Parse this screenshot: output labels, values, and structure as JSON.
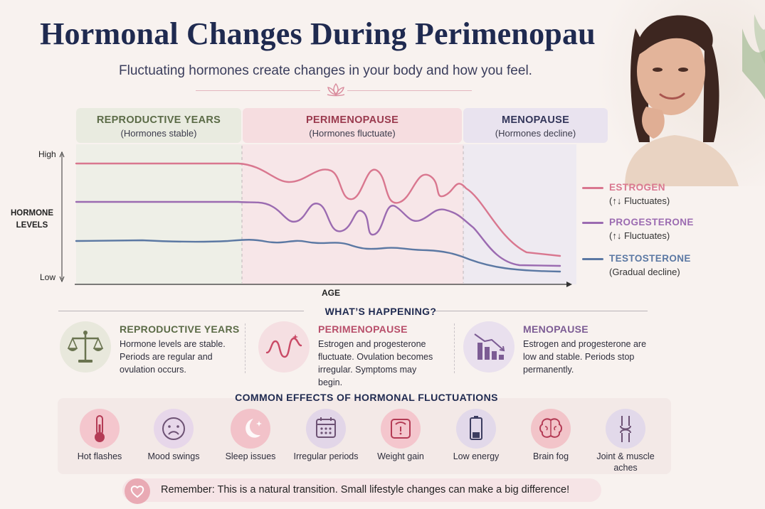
{
  "header": {
    "title": "Hormonal Changes During Perimenopause",
    "subtitle": "Fluctuating hormones create changes in your body and how you feel."
  },
  "phases": [
    {
      "title": "REPRODUCTIVE YEARS",
      "sub": "(Hormones stable)",
      "bg": "#e9ebe0",
      "color": "#5b6b47"
    },
    {
      "title": "PERIMENOPAUSE",
      "sub": "(Hormones fluctuate)",
      "bg": "#f6dde0",
      "color": "#9a3a4e"
    },
    {
      "title": "MENOPAUSE",
      "sub": "(Hormones decline)",
      "bg": "#e9e3ef",
      "color": "#33365a"
    }
  ],
  "axes": {
    "y_high": "High",
    "y_low": "Low",
    "y_title_line1": "HORMONE",
    "y_title_line2": "LEVELS",
    "x_title": "AGE"
  },
  "legend": [
    {
      "name": "ESTROGEN",
      "note": "(↑↓ Fluctuates)",
      "color": "#d9778f"
    },
    {
      "name": "PROGESTERONE",
      "note": "(↑↓ Fluctuates)",
      "color": "#9b6bb1"
    },
    {
      "name": "TESTOSTERONE",
      "note": "(Gradual decline)",
      "color": "#5b78a3"
    }
  ],
  "happening": {
    "title": "WHAT’S HAPPENING?",
    "stages": [
      {
        "title": "REPRODUCTIVE YEARS",
        "text": "Hormone levels are stable. Periods are regular and ovulation occurs.",
        "color": "#5b6b47",
        "icon": "scales-icon"
      },
      {
        "title": "PERIMENOPAUSE",
        "text": "Estrogen and progesterone fluctuate. Ovulation becomes irregular. Symptoms may begin.",
        "color": "#b84e6a",
        "icon": "wave-icon"
      },
      {
        "title": "MENOPAUSE",
        "text": "Estrogen and progesterone are low and stable. Periods stop permanently.",
        "color": "#7c5c94",
        "icon": "declining-bars-icon"
      }
    ]
  },
  "effects": {
    "title": "COMMON EFFECTS OF HORMONAL FLUCTUATIONS",
    "items": [
      {
        "label": "Hot flashes",
        "icon": "thermometer-icon",
        "bg": "#f4c6cd"
      },
      {
        "label": "Mood swings",
        "icon": "sad-face-icon",
        "bg": "#e7d7ea"
      },
      {
        "label": "Sleep issues",
        "icon": "moon-icon",
        "bg": "#f2c2c9"
      },
      {
        "label": "Irregular periods",
        "icon": "calendar-icon",
        "bg": "#e2d6e8"
      },
      {
        "label": "Weight gain",
        "icon": "scale-icon",
        "bg": "#f4c6cd"
      },
      {
        "label": "Low energy",
        "icon": "battery-icon",
        "bg": "#e2d9ea"
      },
      {
        "label": "Brain fog",
        "icon": "brain-icon",
        "bg": "#f2c4c9"
      },
      {
        "label": "Joint & muscle aches",
        "icon": "joint-icon",
        "bg": "#e2d9ea"
      }
    ]
  },
  "footer": {
    "text": "Remember: This is a natural transition.  Small lifestyle changes can make a big difference!"
  }
}
